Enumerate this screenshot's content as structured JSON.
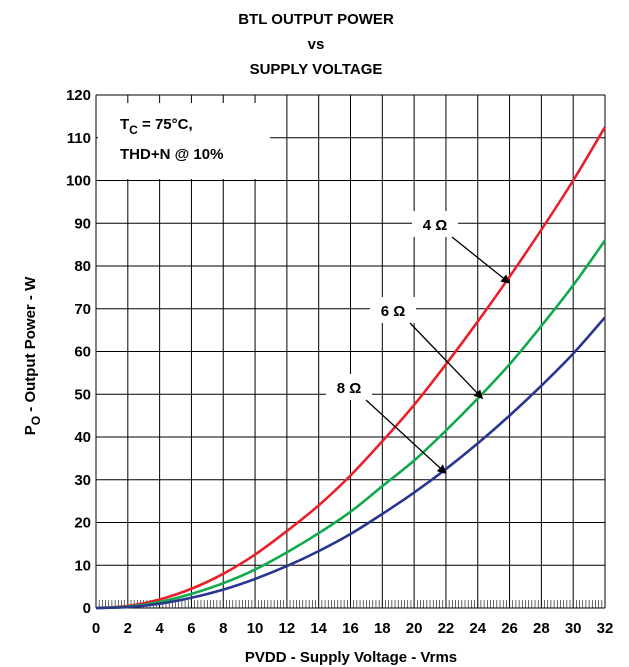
{
  "chart_data": {
    "type": "line",
    "title_lines": [
      "BTL OUTPUT POWER",
      "vs",
      "SUPPLY VOLTAGE"
    ],
    "xlabel": "PVDD - Supply Voltage - Vrms",
    "ylabel": {
      "main": "P",
      "sub": "O",
      "rest": " - Output Power - W"
    },
    "xlim": [
      0,
      32
    ],
    "ylim": [
      0,
      120
    ],
    "x_ticks": [
      0,
      2,
      4,
      6,
      8,
      10,
      12,
      14,
      16,
      18,
      20,
      22,
      24,
      26,
      28,
      30,
      32
    ],
    "y_ticks": [
      0,
      10,
      20,
      30,
      40,
      50,
      60,
      70,
      80,
      90,
      100,
      110,
      120
    ],
    "grid": true,
    "conditions": {
      "line1": {
        "main": "T",
        "sub": "C",
        "rest": " = 75°C,"
      },
      "line2": "THD+N @ 10%"
    },
    "series": [
      {
        "name": "4 Ω",
        "color": "#e8202a",
        "points": [
          [
            0,
            0
          ],
          [
            2,
            0.5
          ],
          [
            4,
            2
          ],
          [
            6,
            4.5
          ],
          [
            8,
            8
          ],
          [
            10,
            12.5
          ],
          [
            12,
            18
          ],
          [
            14,
            24
          ],
          [
            16,
            31
          ],
          [
            18,
            39
          ],
          [
            20,
            47.5
          ],
          [
            22,
            57
          ],
          [
            24,
            67
          ],
          [
            26,
            77.5
          ],
          [
            28,
            88.5
          ],
          [
            30,
            100
          ],
          [
            32,
            112.5
          ]
        ]
      },
      {
        "name": "6 Ω",
        "color": "#0faa4b",
        "points": [
          [
            0,
            0
          ],
          [
            2,
            0.3
          ],
          [
            4,
            1.4
          ],
          [
            6,
            3.3
          ],
          [
            8,
            5.8
          ],
          [
            10,
            9
          ],
          [
            12,
            13
          ],
          [
            14,
            17.5
          ],
          [
            16,
            22.5
          ],
          [
            18,
            28.5
          ],
          [
            20,
            34.5
          ],
          [
            22,
            41.5
          ],
          [
            24,
            49
          ],
          [
            26,
            57
          ],
          [
            28,
            66
          ],
          [
            30,
            75.5
          ],
          [
            32,
            86
          ]
        ]
      },
      {
        "name": "8 Ω",
        "color": "#2a3590",
        "points": [
          [
            0,
            0
          ],
          [
            2,
            0.2
          ],
          [
            4,
            1
          ],
          [
            6,
            2.4
          ],
          [
            8,
            4.3
          ],
          [
            10,
            6.8
          ],
          [
            12,
            9.8
          ],
          [
            14,
            13.3
          ],
          [
            16,
            17.3
          ],
          [
            18,
            22
          ],
          [
            20,
            27
          ],
          [
            22,
            32.5
          ],
          [
            24,
            38.5
          ],
          [
            26,
            45
          ],
          [
            28,
            52
          ],
          [
            30,
            59.5
          ],
          [
            32,
            68
          ]
        ]
      }
    ],
    "callouts": [
      {
        "label": "4 Ω",
        "target": [
          26,
          76
        ]
      },
      {
        "label": "6 Ω",
        "target": [
          24.3,
          49
        ]
      },
      {
        "label": "8 Ω",
        "target": [
          22,
          31.5
        ]
      }
    ]
  }
}
